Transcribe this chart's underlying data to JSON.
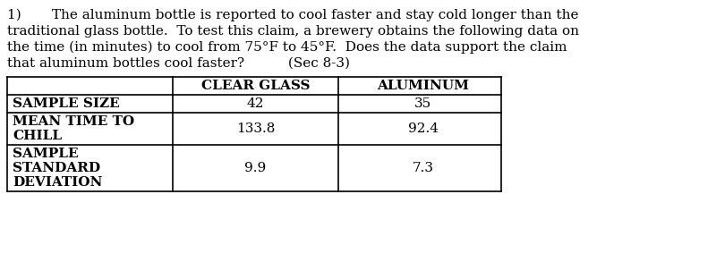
{
  "paragraph_number": "1)",
  "paragraph_indent": "     ",
  "paragraph_lines": [
    "1)       The aluminum bottle is reported to cool faster and stay cold longer than the",
    "traditional glass bottle.  To test this claim, a brewery obtains the following data on",
    "the time (in minutes) to cool from 75°F to 45°F.  Does the data support the claim",
    "that aluminum bottles cool faster?          (Sec 8-3)"
  ],
  "col_headers": [
    "",
    "CLEAR GLASS",
    "ALUMINUM"
  ],
  "rows": [
    [
      "SAMPLE SIZE",
      "42",
      "35"
    ],
    [
      "MEAN TIME TO\nCHILL",
      "133.8",
      "92.4"
    ],
    [
      "SAMPLE\nSTANDARD\nDEVIATION",
      "9.9",
      "7.3"
    ]
  ],
  "bg_color": "#ffffff",
  "text_color": "#000000",
  "font_family": "DejaVu Serif",
  "para_fontsize": 11.0,
  "table_fontsize": 11.0,
  "fig_width": 8.0,
  "fig_height": 2.93,
  "dpi": 100
}
